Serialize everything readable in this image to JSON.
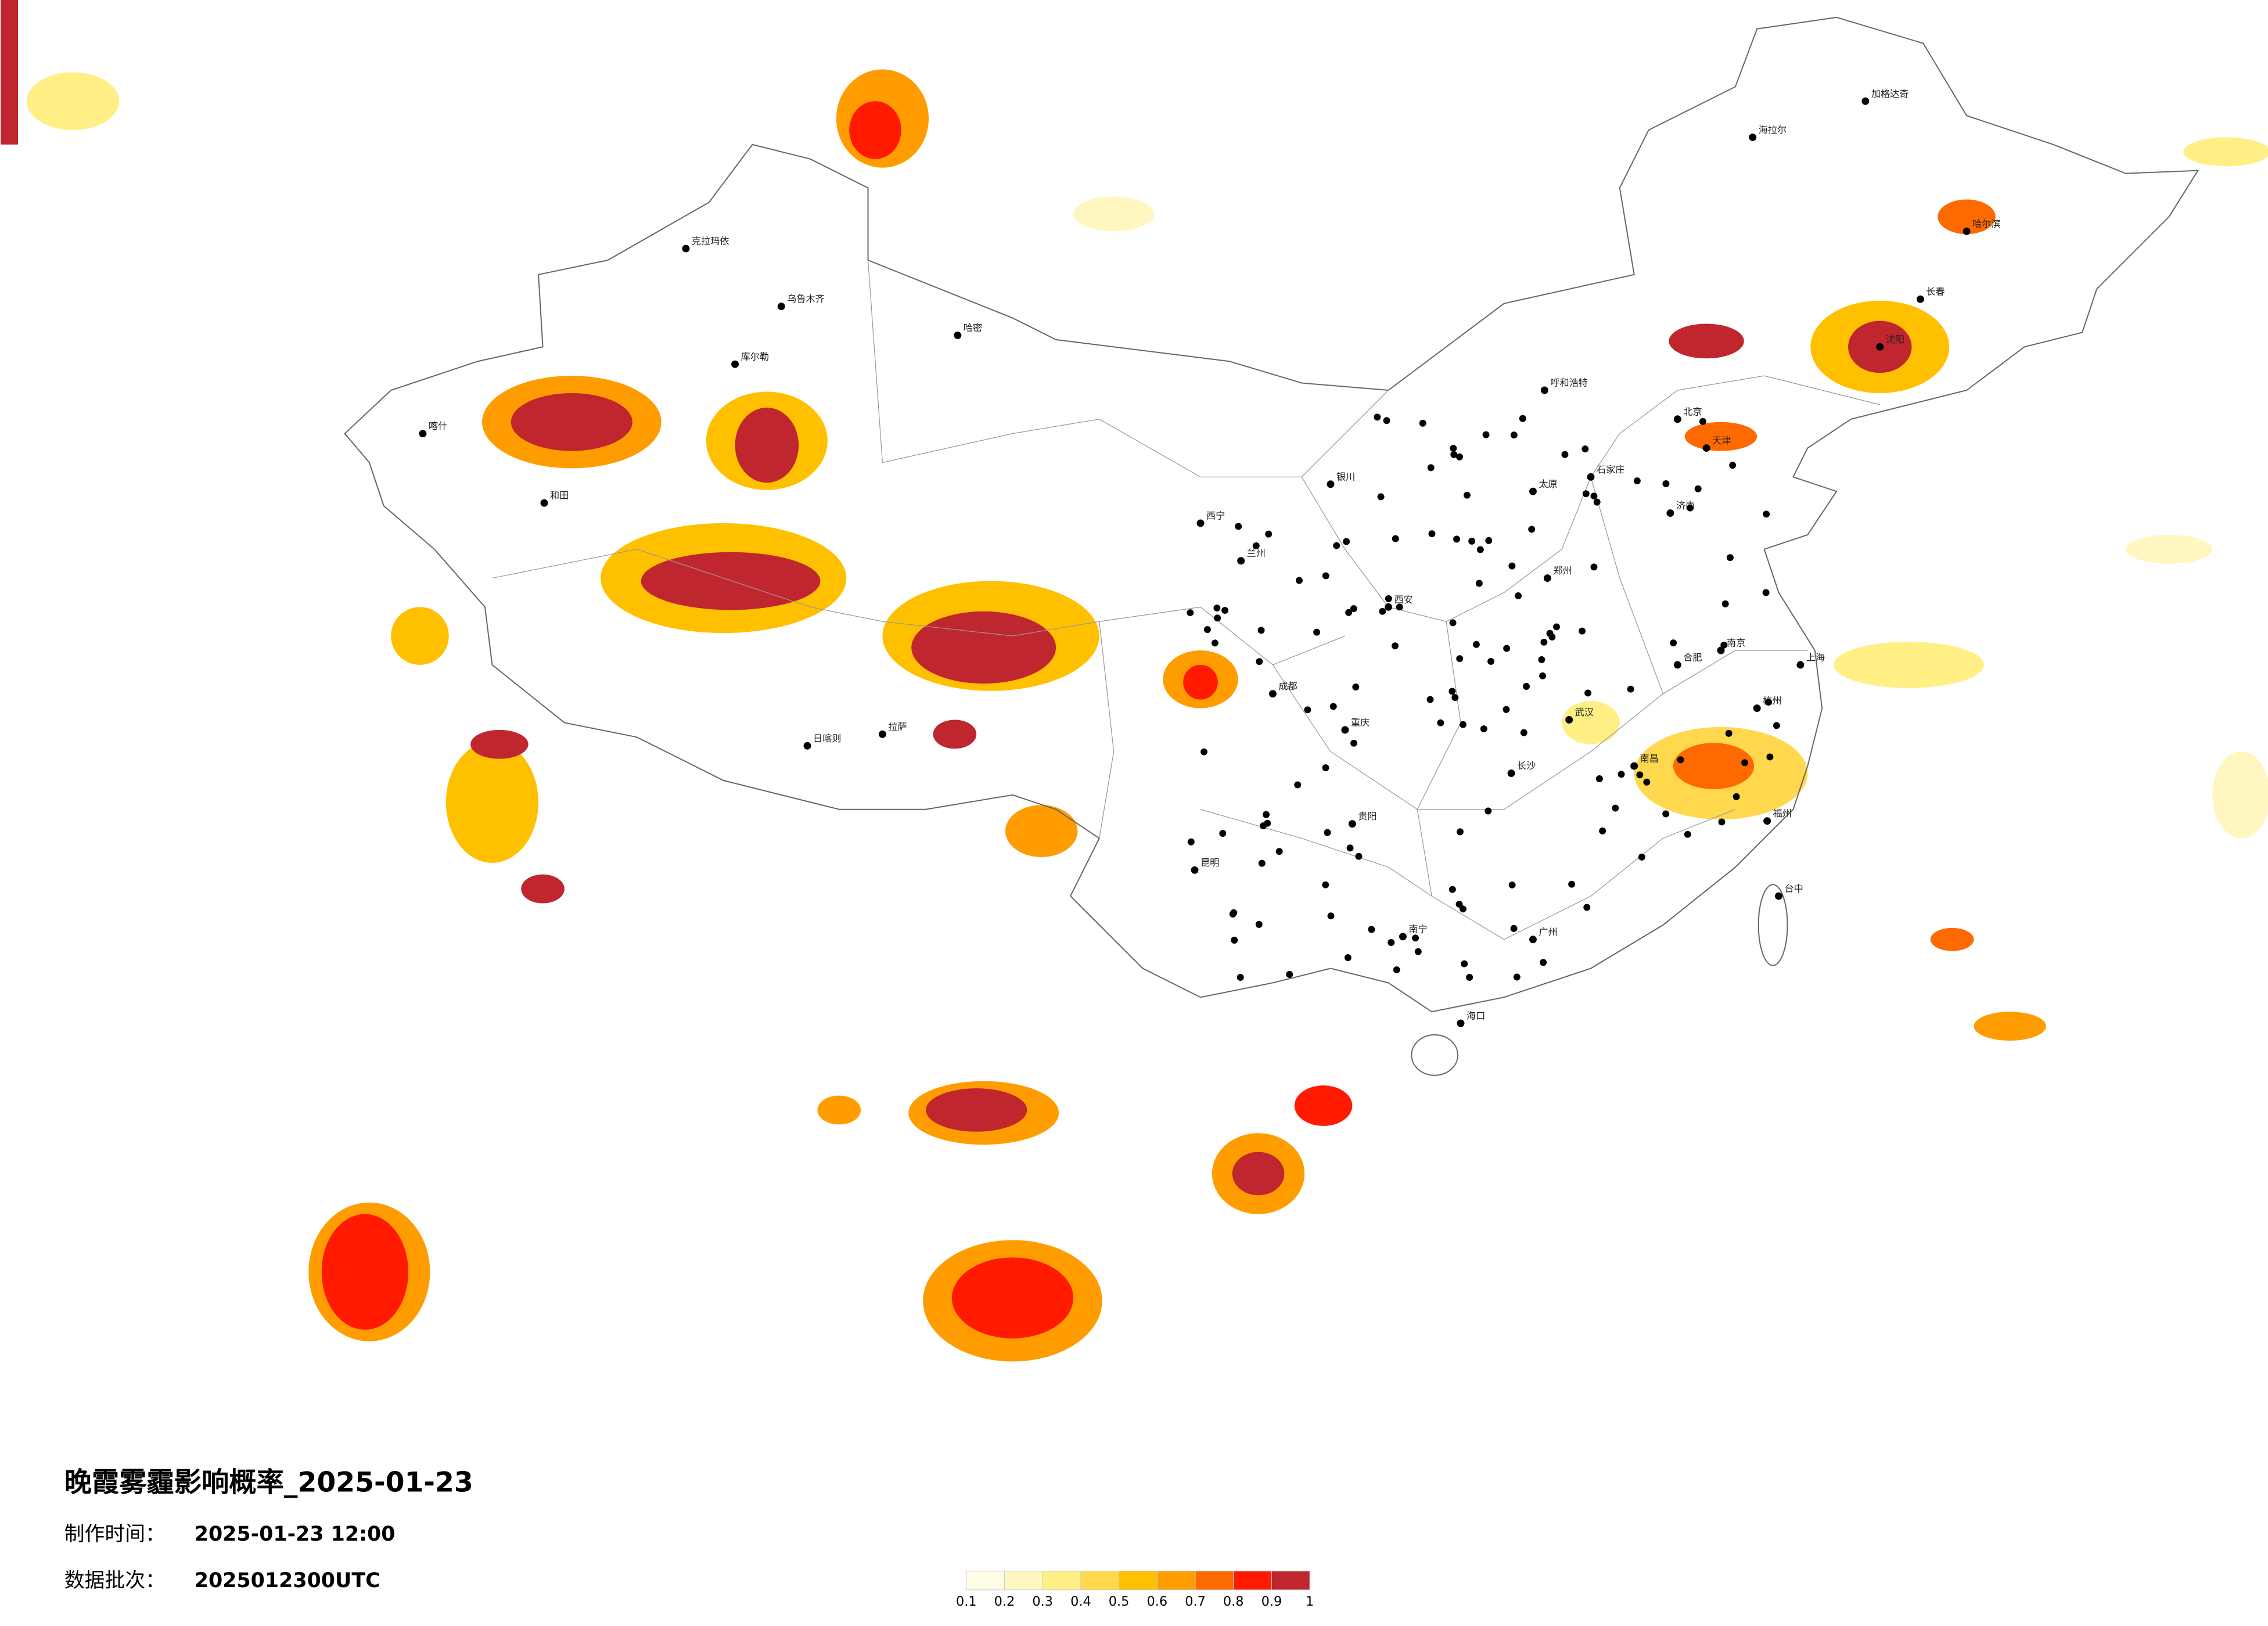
{
  "title": "晚霞雾霾影响概率_2025-01-23",
  "production_time": {
    "label": "制作时间：",
    "value": "2025-01-23 12:00"
  },
  "data_batch": {
    "label": "数据批次：",
    "value": "2025012300UTC"
  },
  "legend": {
    "colors": [
      "#fffde6",
      "#fff7bf",
      "#ffef85",
      "#ffd84d",
      "#ffc000",
      "#ff9d00",
      "#ff6a00",
      "#ff1a00",
      "#c0262e"
    ],
    "ticks": [
      0.1,
      0.2,
      0.3,
      0.4,
      0.5,
      0.6,
      0.7,
      0.8,
      0.9,
      1
    ]
  },
  "cities": [
    "克拉玛依",
    "乌鲁木齐",
    "喀什",
    "和田",
    "库尔勒",
    "哈密",
    "拉萨",
    "日喀则",
    "西宁",
    "兰州",
    "成都",
    "重庆",
    "昆明",
    "贵阳",
    "南宁",
    "海口",
    "广州",
    "福州",
    "台中",
    "上海",
    "南京",
    "武汉",
    "长沙",
    "西安",
    "郑州",
    "北京",
    "天津",
    "沈阳",
    "长春",
    "哈尔滨",
    "呼和浩特",
    "银川",
    "太原",
    "济南",
    "石家庄",
    "海拉尔",
    "加格达奇",
    "南昌",
    "合肥",
    "杭州"
  ]
}
